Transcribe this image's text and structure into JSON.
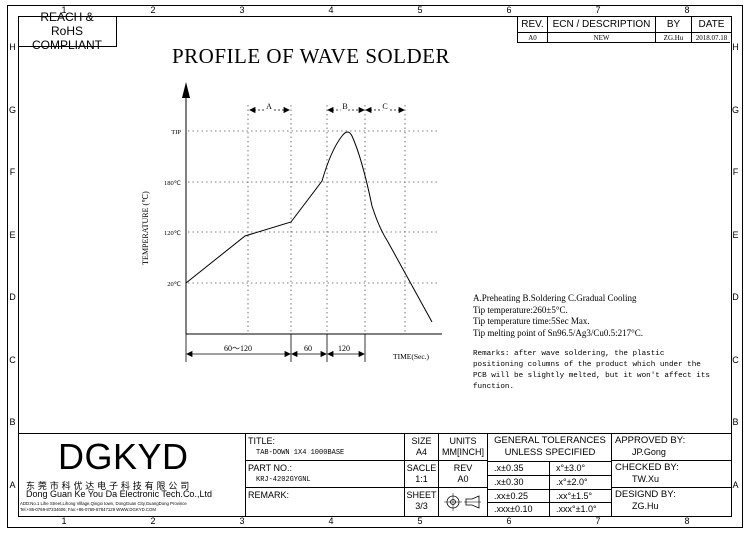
{
  "zones": {
    "columns": [
      "1",
      "2",
      "3",
      "4",
      "5",
      "6",
      "7",
      "8"
    ],
    "rows": [
      "H",
      "G",
      "F",
      "E",
      "D",
      "C",
      "B",
      "A"
    ]
  },
  "compliance": "REACH & RoHS COMPLIANT",
  "revision_table": {
    "headers": {
      "rev": "REV.",
      "ecn": "ECN / DESCRIPTION",
      "by": "BY",
      "date": "DATE"
    },
    "row": {
      "rev": "A0",
      "ecn": "NEW",
      "by": "ZG.Hu",
      "date": "2018.07.18"
    }
  },
  "drawing_title": "PROFILE OF WAVE SOLDER",
  "profile": {
    "y_axis_label": "TEMPERATURE (℃)",
    "x_axis_label": "TIME(Sec.)",
    "y_ticks": [
      "TIP",
      "180℃",
      "120℃",
      "20℃"
    ],
    "phase_labels": [
      "A",
      "B",
      "C"
    ],
    "time_segments": [
      "60～120",
      "60",
      "120"
    ]
  },
  "notes": {
    "phases": "A.Preheating  B.Soldering  C.Gradual Cooling",
    "tip_temperature": "Tip temperature:260±5°C.",
    "tip_time": "Tip temperature time:5Sec Max.",
    "tip_melting": "Tip melting point of Sn96.5/Ag3/Cu0.5:217°C.",
    "remarks": [
      "Remarks: after wave soldering, the plastic",
      "positioning columns of the product  which under the",
      "PCB will be slightly melted, but it won't affect its",
      "function."
    ]
  },
  "company": {
    "logo": "DGKYD",
    "name_cn": "东 莞 市 科 优 达 电 子 科 技 有 限 公 司",
    "name_en": "Dong Guan Ke You Da Electronic Tech.Co.,Ltd",
    "address": "ADD:No.1 Lihe Street,Lihong Village,Qingxi town, DongGuan City,GuangDong Province",
    "contact": "Tel:+86-0769-87334606; Fax:+86-0769-87847129  WWW.DGKYD.COM"
  },
  "title_block": {
    "title_label": "TITLE:",
    "title_value": "TAB-DOWN 1X4 1000BASE",
    "part_label": "PART NO.:",
    "part_value": "KRJ-4202GYGNL",
    "remark_label": "REMARK:",
    "size_label": "SIZE",
    "size_value": "A4",
    "units_label": "UNITS",
    "units_value": "MM[INCH]",
    "scale_label": "SACLE",
    "scale_value": "1:1",
    "rev_label": "REV",
    "rev_value": "A0",
    "sheet_label": "SHEET",
    "sheet_value": "3/3",
    "tolerances_title": "GENERAL TOLERANCES",
    "tolerances_sub": "UNLESS SPECIFIED",
    "tolerances": [
      [
        ".x±0.35",
        "x°±3.0°"
      ],
      [
        ".x±0.30",
        ".x°±2.0°"
      ],
      [
        ".xx±0.25",
        ".xx°±1.5°"
      ],
      [
        ".xxx±0.10",
        ".xxx°±1.0°"
      ]
    ],
    "approved_label": "APPROVED BY:",
    "approved_value": "JP.Gong",
    "checked_label": "CHECKED BY:",
    "checked_value": "TW.Xu",
    "designed_label": "DESIGND BY:",
    "designed_value": "ZG.Hu"
  }
}
